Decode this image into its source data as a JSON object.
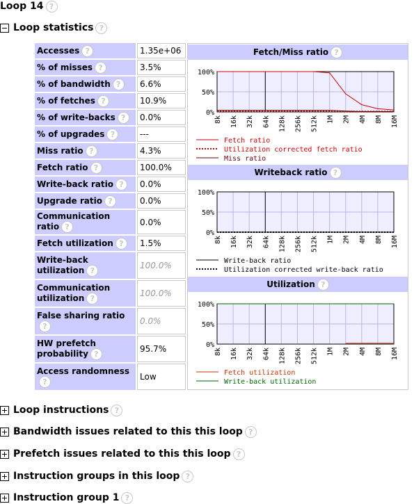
{
  "page": {
    "title": "Loop 14"
  },
  "sections": {
    "loop_statistics": "Loop statistics",
    "loop_instructions": "Loop instructions",
    "bandwidth_issues": "Bandwidth issues related to this this loop",
    "prefetch_issues": "Prefetch issues related to this this loop",
    "instruction_groups": "Instruction groups in this loop",
    "instruction_group_1": "Instruction group 1"
  },
  "help_glyph": "?",
  "stats": [
    {
      "label": "Accesses",
      "value": "1.35e+06"
    },
    {
      "label": "% of misses",
      "value": "3.5%"
    },
    {
      "label": "% of bandwidth",
      "value": "6.6%"
    },
    {
      "label": "% of fetches",
      "value": "10.9%"
    },
    {
      "label": "% of write-backs",
      "value": "0.0%"
    },
    {
      "label": "% of upgrades",
      "value": "---"
    },
    {
      "label": "Miss ratio",
      "value": "4.3%"
    },
    {
      "label": "Fetch ratio",
      "value": "100.0%"
    },
    {
      "label": "Write-back ratio",
      "value": "0.0%"
    },
    {
      "label": "Upgrade ratio",
      "value": "0.0%"
    },
    {
      "label": "Communication ratio",
      "value": "0.0%"
    },
    {
      "label": "Fetch utilization",
      "value": "1.5%"
    },
    {
      "label": "Write-back utilization",
      "value": "100.0%"
    },
    {
      "label": "Communication utilization",
      "value": "100.0%"
    },
    {
      "label": "False sharing ratio",
      "value": "0.0%"
    },
    {
      "label": "HW prefetch probability",
      "value": "95.7%"
    },
    {
      "label": "Access randomness",
      "value": "Low"
    }
  ],
  "colors": {
    "header_bg": "#ccccff",
    "grid_bg": "#eeeeff",
    "grid_line": "#b8b8e0"
  },
  "chart_data": [
    {
      "type": "line",
      "title": "Fetch/Miss ratio",
      "x": [
        "8k",
        "16k",
        "32k",
        "64k",
        "128k",
        "256k",
        "512k",
        "1M",
        "2M",
        "4M",
        "8M",
        "16M"
      ],
      "yticks": [
        "100%",
        "50%",
        "0%"
      ],
      "ylim": [
        0,
        100
      ],
      "marker_x": "64k",
      "series": [
        {
          "name": "Fetch ratio",
          "color": "#cc0000",
          "dash": "solid",
          "values": [
            100,
            100,
            100,
            100,
            100,
            100,
            100,
            97,
            45,
            18,
            8,
            5
          ]
        },
        {
          "name": "Utilization corrected fetch ratio",
          "color": "#cc0000",
          "dash": "dotted",
          "values": [
            2,
            2,
            2,
            2,
            2,
            2,
            2,
            2,
            1,
            1,
            1,
            1
          ]
        },
        {
          "name": "Miss ratio",
          "color": "#660000",
          "dash": "solid",
          "values": [
            4,
            4,
            4,
            4,
            4,
            4,
            4,
            4,
            2,
            1,
            1,
            1
          ]
        }
      ]
    },
    {
      "type": "line",
      "title": "Writeback ratio",
      "x": [
        "8k",
        "16k",
        "32k",
        "64k",
        "128k",
        "256k",
        "512k",
        "1M",
        "2M",
        "4M",
        "8M",
        "16M"
      ],
      "yticks": [
        "100%",
        "50%",
        "0%"
      ],
      "ylim": [
        0,
        100
      ],
      "marker_x": "64k",
      "series": [
        {
          "name": "Write-back ratio",
          "color": "#000000",
          "dash": "solid",
          "values": [
            0,
            0,
            0,
            0,
            0,
            0,
            0,
            0,
            0,
            0,
            0,
            0
          ]
        },
        {
          "name": "Utilization corrected write-back ratio",
          "color": "#000000",
          "dash": "dotted",
          "values": [
            0,
            0,
            0,
            0,
            0,
            0,
            0,
            0,
            0,
            0,
            0,
            0
          ]
        }
      ]
    },
    {
      "type": "line",
      "title": "Utilization",
      "x": [
        "8k",
        "16k",
        "32k",
        "64k",
        "128k",
        "256k",
        "512k",
        "1M",
        "2M",
        "4M",
        "8M",
        "16M"
      ],
      "yticks": [
        "100%",
        "50%",
        "0%"
      ],
      "ylim": [
        0,
        100
      ],
      "marker_x": "64k",
      "series": [
        {
          "name": "Fetch utilization",
          "color": "#cc3300",
          "dash": "solid",
          "values": [
            null,
            null,
            null,
            null,
            null,
            null,
            null,
            null,
            2,
            2,
            2,
            2
          ]
        },
        {
          "name": "Write-back utilization",
          "color": "#006600",
          "dash": "solid",
          "values": [
            100,
            100,
            100,
            100,
            100,
            100,
            100,
            100,
            100,
            100,
            100,
            100
          ]
        }
      ]
    }
  ]
}
